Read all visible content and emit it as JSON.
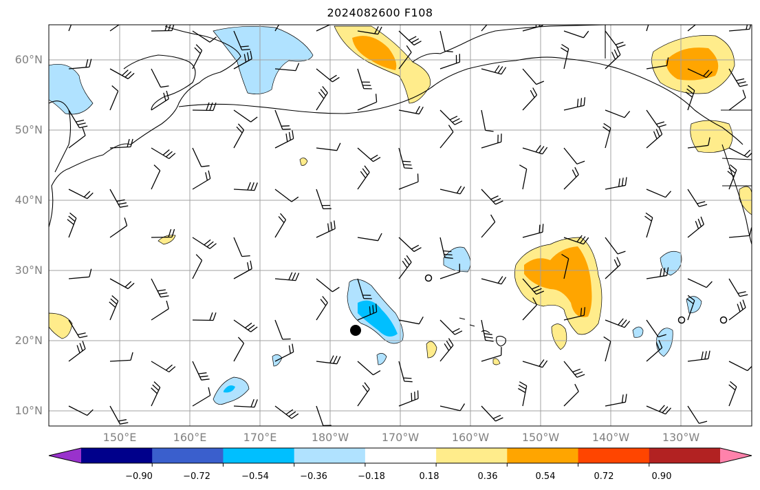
{
  "map": {
    "title": "2024082600 F108",
    "lat_labels": [
      "60°N",
      "50°N",
      "40°N",
      "30°N",
      "20°N",
      "10°N"
    ],
    "lon_labels": [
      "150°E",
      "160°E",
      "170°E",
      "180°W",
      "170°W",
      "160°W",
      "150°W",
      "140°W",
      "130°W"
    ]
  },
  "colorbar": {
    "tick_labels": [
      "−0.90",
      "−0.72",
      "−0.54",
      "−0.36",
      "−0.18",
      "0.18",
      "0.36",
      "0.54",
      "0.72",
      "0.90"
    ],
    "colors": [
      "#9932cc",
      "#00008b",
      "#3a5fcd",
      "#00bfff",
      "#b0e2ff",
      "#ffffff",
      "#ffec8b",
      "#ffa500",
      "#ff4500",
      "#b22222",
      "#ff82ab"
    ]
  },
  "colors": {
    "grid": "#a0a0a0",
    "coast": "#000000",
    "barb": "#000000"
  }
}
